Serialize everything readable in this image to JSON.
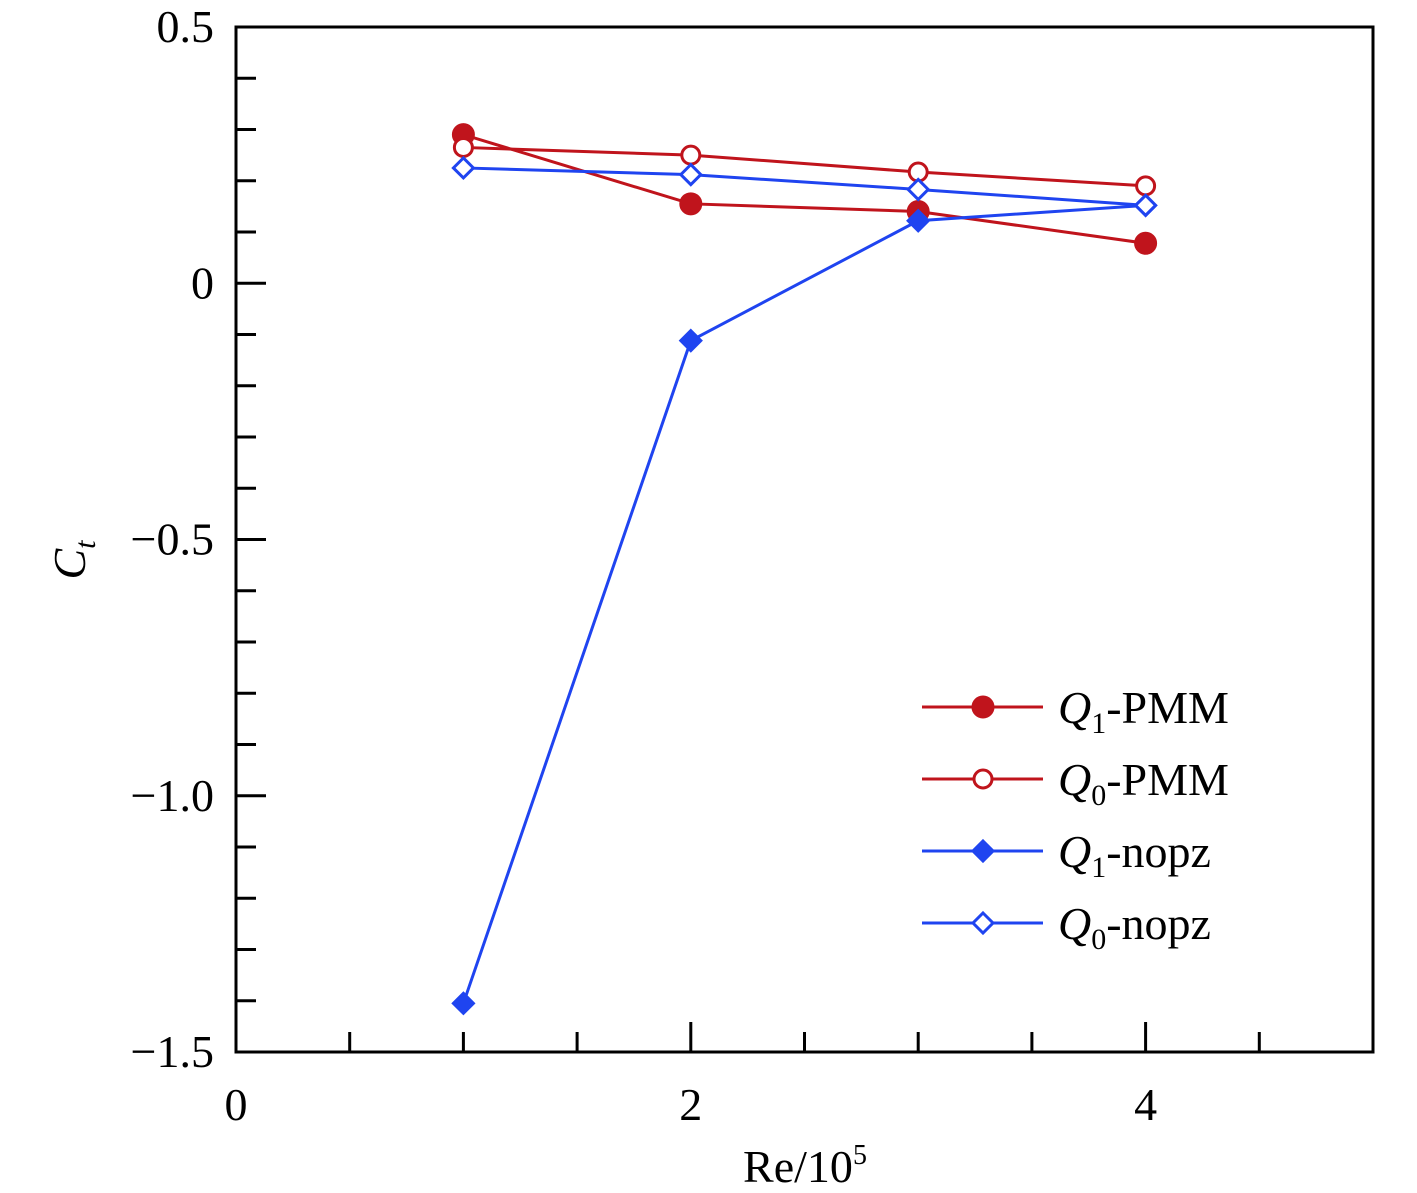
{
  "chart_data": {
    "type": "line",
    "title": "",
    "xlabel": {
      "base": "Re/10",
      "sup": "5"
    },
    "ylabel": {
      "base": "C",
      "sub": "t"
    },
    "xlim": [
      0,
      5
    ],
    "ylim": [
      -1.5,
      0.5
    ],
    "x_ticks": [
      0,
      2,
      4
    ],
    "x_tick_labels": [
      "0",
      "2",
      "4"
    ],
    "x_minor_ticks": [
      0.5,
      1,
      1.5,
      2.5,
      3,
      3.5,
      4.5
    ],
    "y_ticks": [
      0.5,
      0,
      -0.5,
      -1.0,
      -1.5
    ],
    "y_tick_labels": [
      "0.5",
      "0",
      "−0.5",
      "−1.0",
      "−1.5"
    ],
    "y_minor_ticks": [
      0.4,
      0.3,
      0.2,
      0.1,
      -0.1,
      -0.2,
      -0.3,
      -0.4,
      -0.6,
      -0.7,
      -0.8,
      -0.9,
      -1.1,
      -1.2,
      -1.3,
      -1.4
    ],
    "grid": false,
    "legend_position": "bottom-right",
    "series": [
      {
        "name": "Q1-PMM",
        "label_main": "Q",
        "label_sub": "1",
        "label_rest": "-PMM",
        "color": "#c0141c",
        "marker": "circle-filled",
        "x": [
          1,
          2,
          3,
          4
        ],
        "y": [
          0.29,
          0.155,
          0.14,
          0.078
        ]
      },
      {
        "name": "Q0-PMM",
        "label_main": "Q",
        "label_sub": "0",
        "label_rest": "-PMM",
        "color": "#c0141c",
        "marker": "circle-open",
        "x": [
          1,
          2,
          3,
          4
        ],
        "y": [
          0.265,
          0.25,
          0.217,
          0.19
        ]
      },
      {
        "name": "Q1-nopz",
        "label_main": "Q",
        "label_sub": "1",
        "label_rest": "-nopz",
        "color": "#1f44f0",
        "marker": "diamond-filled",
        "x": [
          1,
          2,
          3,
          4
        ],
        "y": [
          -1.405,
          -0.112,
          0.122,
          0.152
        ]
      },
      {
        "name": "Q0-nopz",
        "label_main": "Q",
        "label_sub": "0",
        "label_rest": "-nopz",
        "color": "#1f44f0",
        "marker": "diamond-open",
        "x": [
          1,
          2,
          3,
          4
        ],
        "y": [
          0.225,
          0.212,
          0.183,
          0.152
        ]
      }
    ]
  }
}
